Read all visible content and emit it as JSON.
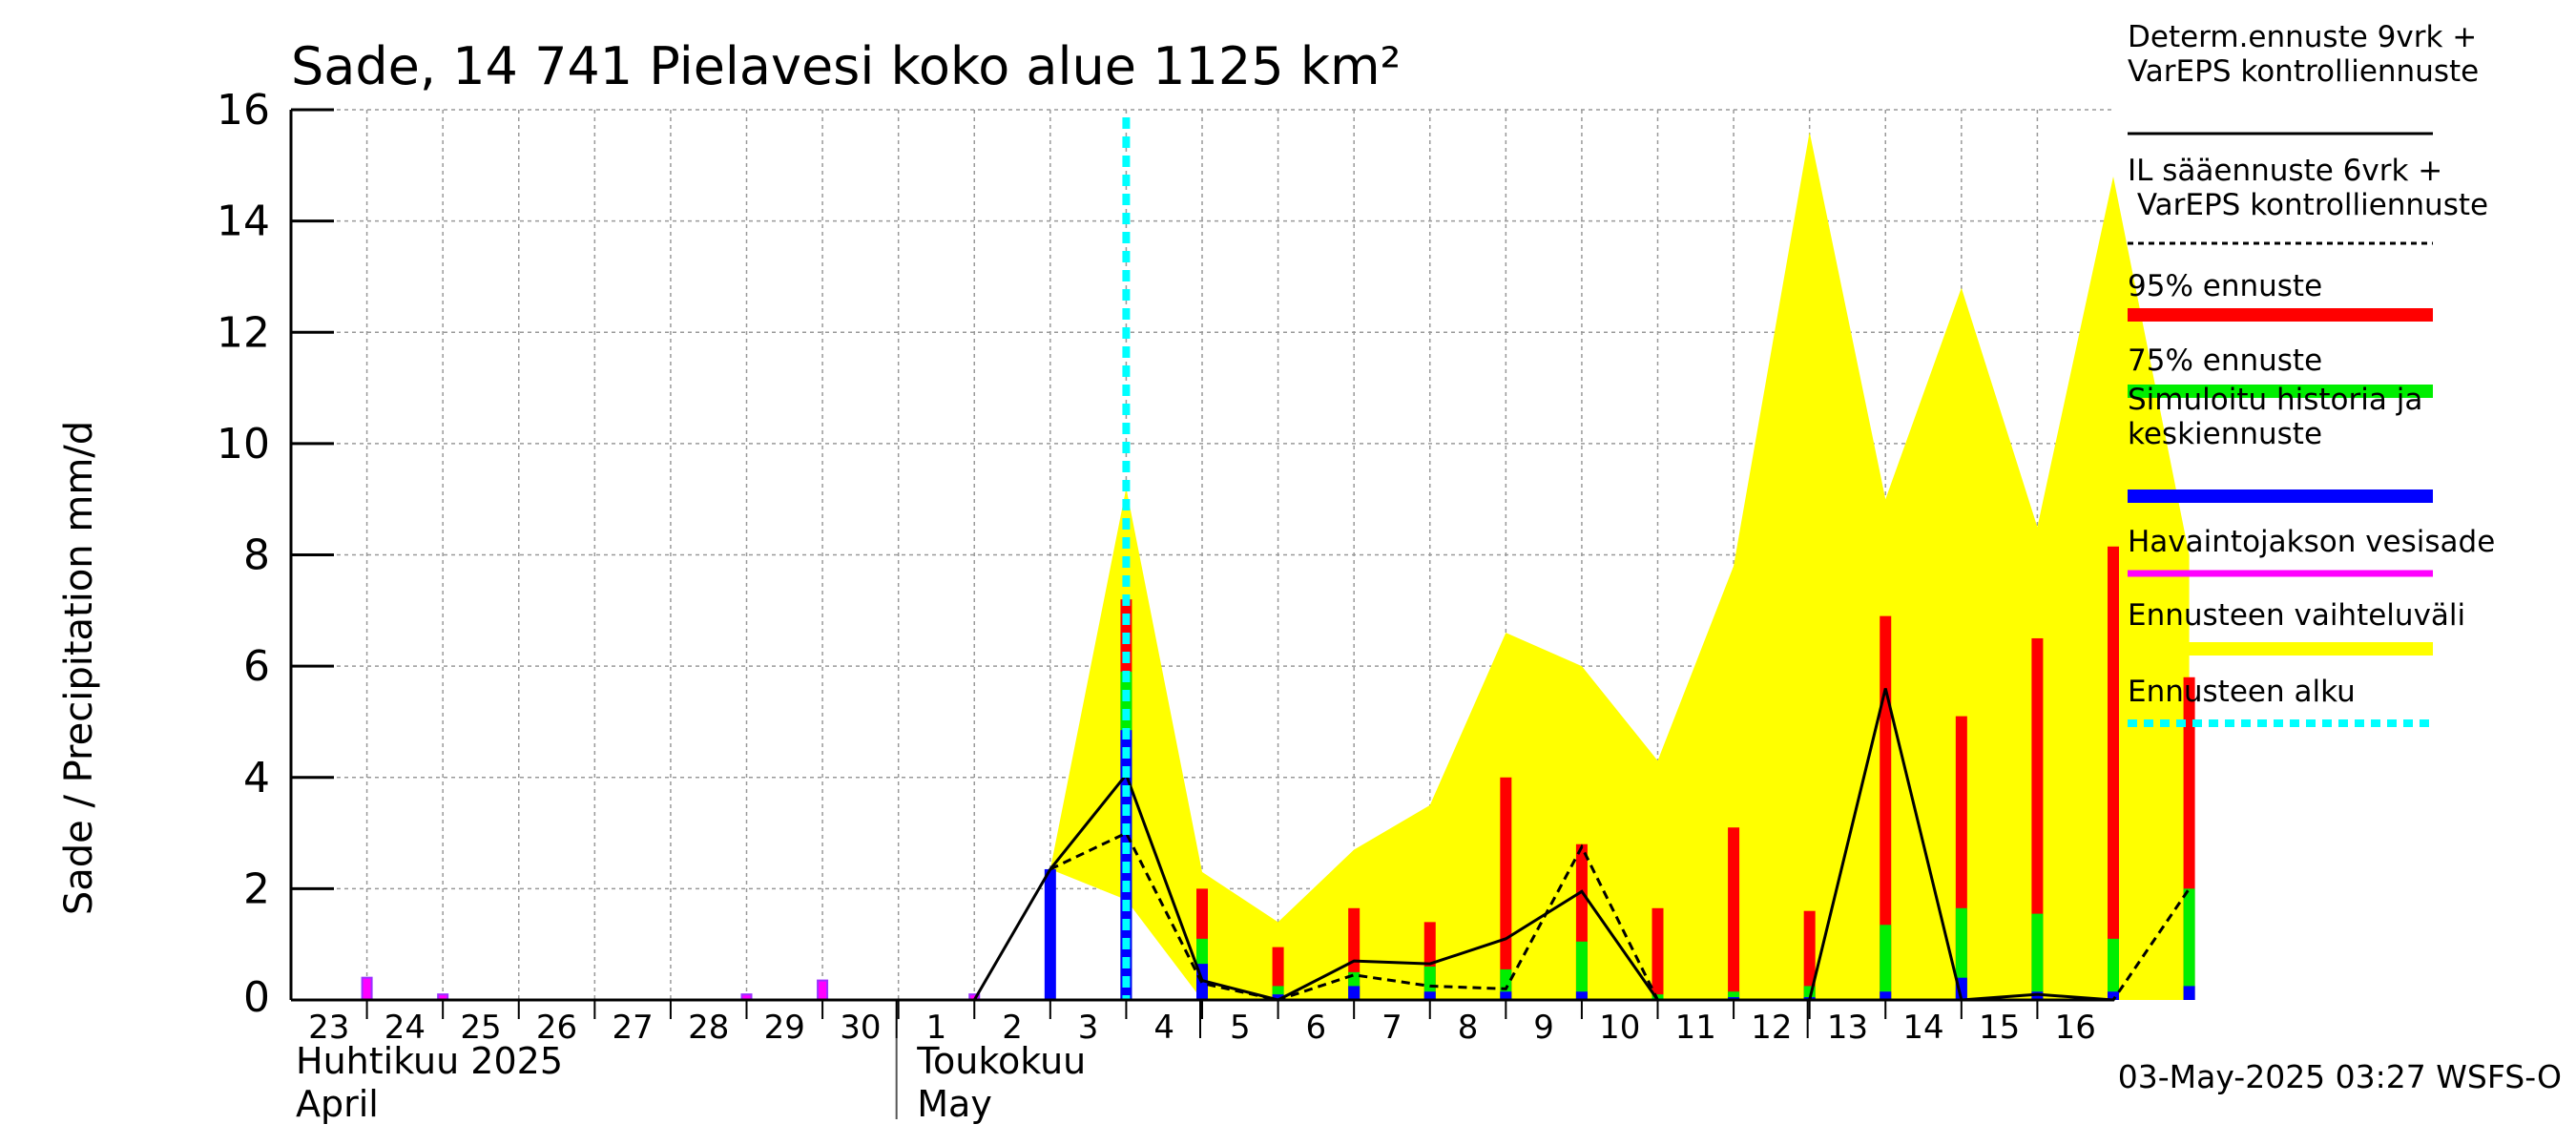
{
  "chart_data": {
    "type": "bar",
    "title": "Sade, 14 741 Pielavesi koko alue 1125 km²",
    "ylabel": "Sade / Precipitation   mm/d",
    "ylim": [
      0,
      16
    ],
    "yticks": [
      0,
      2,
      4,
      6,
      8,
      10,
      12,
      14,
      16
    ],
    "grid": true,
    "legend_position": "right",
    "day_labels": [
      "23",
      "24",
      "25",
      "26",
      "27",
      "28",
      "29",
      "30",
      "1",
      "2",
      "3",
      "4",
      "5",
      "6",
      "7",
      "8",
      "9",
      "10",
      "11",
      "12",
      "13",
      "14",
      "15",
      "16"
    ],
    "months": [
      {
        "name_fi": "Huhtikuu  2025",
        "name_en": "April"
      },
      {
        "name_fi": "Toukokuu",
        "name_en": "May"
      }
    ],
    "forecast_start_day": 3,
    "observed_precip": {
      "days": [
        0,
        1,
        5,
        6,
        8
      ],
      "values": [
        0.4,
        0.1,
        0.1,
        0.35,
        0.1
      ]
    },
    "bars": {
      "days": [
        9,
        10,
        11,
        12,
        13,
        14,
        15,
        16,
        17,
        18,
        19,
        20,
        21,
        22,
        23,
        24
      ],
      "p95": [
        null,
        7.2,
        2.0,
        0.95,
        1.65,
        1.4,
        4.0,
        2.8,
        1.65,
        3.1,
        1.6,
        6.9,
        5.1,
        6.5,
        8.15,
        5.8
      ],
      "p75": [
        null,
        5.9,
        1.1,
        0.25,
        0.5,
        0.6,
        0.55,
        1.05,
        0.1,
        0.15,
        0.25,
        1.35,
        1.65,
        1.55,
        1.1,
        2.0
      ],
      "median": [
        2.35,
        4.85,
        0.65,
        0.1,
        0.25,
        0.15,
        0.15,
        0.15,
        0.0,
        0.05,
        0.05,
        0.15,
        0.4,
        0.15,
        0.15,
        0.25
      ]
    },
    "series": [
      {
        "name": "Determ.ennuste 9vrk + VarEPS kontrolliennuste",
        "style": "solid",
        "x": [
          8,
          9,
          10,
          11,
          12,
          13,
          14,
          15,
          16,
          17,
          18,
          19,
          20,
          21,
          22,
          23
        ],
        "values": [
          0.0,
          2.35,
          4.05,
          0.35,
          0.0,
          0.7,
          0.65,
          1.1,
          1.95,
          0.0,
          0.0,
          0.0,
          5.6,
          0.0,
          0.1,
          0.0
        ]
      },
      {
        "name": "IL sääennuste 6vrk + VarEPS kontrolliennuste",
        "style": "dashed",
        "x": [
          9,
          10,
          11,
          12,
          13,
          14,
          15,
          16,
          17,
          18,
          19,
          20,
          21,
          22,
          23,
          24
        ],
        "values": [
          2.35,
          3.0,
          0.3,
          0.0,
          0.45,
          0.25,
          0.2,
          2.75,
          0.0,
          0.0,
          0.0,
          0.0,
          0.0,
          0.0,
          0.0,
          2.0
        ]
      }
    ],
    "range_band": {
      "x": [
        9,
        10,
        11,
        12,
        13,
        14,
        15,
        16,
        17,
        18,
        19,
        20,
        21,
        22,
        23,
        24
      ],
      "upper": [
        2.35,
        9.2,
        2.3,
        1.4,
        2.7,
        3.5,
        6.6,
        6.0,
        4.3,
        7.8,
        15.6,
        9.0,
        12.8,
        8.5,
        14.8,
        8.0
      ],
      "lower": [
        2.35,
        1.8,
        0.0,
        0.0,
        0.0,
        0.0,
        0.0,
        0.0,
        0.0,
        0.0,
        0.0,
        0.0,
        0.0,
        0.0,
        0.0,
        0.0
      ]
    },
    "legend": [
      {
        "label": "Determ.ennuste 9vrk +\nVarEPS kontrolliennuste",
        "color": "#000000",
        "style": "solid"
      },
      {
        "label": "IL sääennuste 6vrk  +\n  VarEPS kontrolliennuste",
        "color": "#000000",
        "style": "dashed"
      },
      {
        "label": "95% ennuste",
        "color": "#ff0000",
        "style": "thick"
      },
      {
        "label": "75% ennuste",
        "color": "#00ee00",
        "style": "thick"
      },
      {
        "label": "Simuloitu historia ja\nkeskiennuste",
        "color": "#0000ff",
        "style": "thick"
      },
      {
        "label": "Havaintojakson vesisade",
        "color": "#ff00ff",
        "style": "medium"
      },
      {
        "label": "Ennusteen vaihteluväli",
        "color": "#ffff00",
        "style": "thick"
      },
      {
        "label": "Ennusteen alku",
        "color": "#00ffff",
        "style": "dotted"
      }
    ],
    "colors": {
      "p95": "#ff0000",
      "p75": "#00ee00",
      "median": "#0000ff",
      "observed": "#ff00ff",
      "observed_edge": "#9b30ff",
      "band": "#ffff00",
      "forecast_start": "#00ffff"
    },
    "footer": "03-May-2025 03:27 WSFS-O"
  }
}
